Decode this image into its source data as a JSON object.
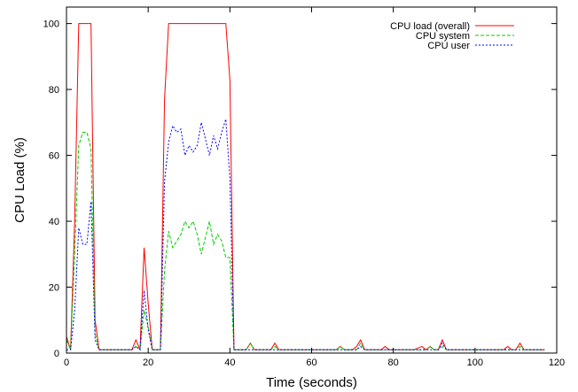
{
  "chart_data": {
    "type": "line",
    "xlabel": "Time (seconds)",
    "ylabel": "CPU Load (%)",
    "xlim": [
      0,
      120
    ],
    "ylim": [
      0,
      105
    ],
    "xticks": [
      0,
      20,
      40,
      60,
      80,
      100,
      120
    ],
    "yticks": [
      0,
      20,
      40,
      60,
      80,
      100
    ],
    "grid": false,
    "legend_position": "top-right",
    "series": [
      {
        "name": "CPU load (overall)",
        "color": "#ff0000",
        "dash": "solid",
        "points": [
          [
            0,
            5
          ],
          [
            1,
            1
          ],
          [
            2,
            40
          ],
          [
            3,
            100
          ],
          [
            4,
            100
          ],
          [
            5,
            100
          ],
          [
            6,
            100
          ],
          [
            7,
            10
          ],
          [
            8,
            1
          ],
          [
            9,
            1
          ],
          [
            10,
            1
          ],
          [
            12,
            1
          ],
          [
            14,
            1
          ],
          [
            16,
            1
          ],
          [
            17,
            4
          ],
          [
            18,
            1
          ],
          [
            19,
            32
          ],
          [
            20,
            15
          ],
          [
            21,
            1
          ],
          [
            22,
            1
          ],
          [
            23,
            1
          ],
          [
            24,
            77
          ],
          [
            25,
            100
          ],
          [
            27,
            100
          ],
          [
            30,
            100
          ],
          [
            33,
            100
          ],
          [
            36,
            100
          ],
          [
            38,
            100
          ],
          [
            39,
            100
          ],
          [
            40,
            83
          ],
          [
            41,
            1
          ],
          [
            42,
            1
          ],
          [
            43,
            1
          ],
          [
            44,
            1
          ],
          [
            45,
            3
          ],
          [
            46,
            1
          ],
          [
            47,
            1
          ],
          [
            48,
            1
          ],
          [
            49,
            1
          ],
          [
            50,
            1
          ],
          [
            51,
            3
          ],
          [
            52,
            1
          ],
          [
            54,
            1
          ],
          [
            56,
            1
          ],
          [
            58,
            1
          ],
          [
            60,
            1
          ],
          [
            62,
            1
          ],
          [
            64,
            1
          ],
          [
            66,
            1
          ],
          [
            67,
            2
          ],
          [
            68,
            1
          ],
          [
            70,
            1
          ],
          [
            71,
            2
          ],
          [
            72,
            4
          ],
          [
            73,
            1
          ],
          [
            75,
            1
          ],
          [
            77,
            1
          ],
          [
            78,
            2
          ],
          [
            79,
            1
          ],
          [
            81,
            1
          ],
          [
            83,
            1
          ],
          [
            85,
            1
          ],
          [
            87,
            2
          ],
          [
            88,
            1
          ],
          [
            89,
            2
          ],
          [
            90,
            1
          ],
          [
            91,
            1
          ],
          [
            92,
            4
          ],
          [
            93,
            1
          ],
          [
            95,
            1
          ],
          [
            97,
            1
          ],
          [
            99,
            1
          ],
          [
            101,
            1
          ],
          [
            103,
            1
          ],
          [
            105,
            1
          ],
          [
            107,
            1
          ],
          [
            108,
            2
          ],
          [
            109,
            1
          ],
          [
            110,
            1
          ],
          [
            111,
            3
          ],
          [
            112,
            1
          ],
          [
            114,
            1
          ],
          [
            116,
            1
          ],
          [
            117,
            1
          ]
        ]
      },
      {
        "name": "CPU system",
        "color": "#00cc00",
        "dash": "4,2",
        "points": [
          [
            0,
            4
          ],
          [
            1,
            1
          ],
          [
            2,
            30
          ],
          [
            3,
            63
          ],
          [
            4,
            67
          ],
          [
            5,
            67
          ],
          [
            6,
            62
          ],
          [
            7,
            6
          ],
          [
            8,
            1
          ],
          [
            9,
            1
          ],
          [
            10,
            1
          ],
          [
            12,
            1
          ],
          [
            14,
            1
          ],
          [
            16,
            1
          ],
          [
            17,
            2
          ],
          [
            18,
            1
          ],
          [
            19,
            13
          ],
          [
            20,
            8
          ],
          [
            21,
            1
          ],
          [
            22,
            1
          ],
          [
            23,
            1
          ],
          [
            24,
            25
          ],
          [
            25,
            37
          ],
          [
            26,
            32
          ],
          [
            27,
            34
          ],
          [
            28,
            36
          ],
          [
            29,
            40
          ],
          [
            30,
            38
          ],
          [
            31,
            40
          ],
          [
            32,
            36
          ],
          [
            33,
            30
          ],
          [
            34,
            35
          ],
          [
            35,
            40
          ],
          [
            36,
            33
          ],
          [
            37,
            36
          ],
          [
            38,
            34
          ],
          [
            39,
            29
          ],
          [
            40,
            29
          ],
          [
            41,
            1
          ],
          [
            42,
            1
          ],
          [
            43,
            1
          ],
          [
            44,
            1
          ],
          [
            45,
            3
          ],
          [
            46,
            1
          ],
          [
            47,
            1
          ],
          [
            48,
            1
          ],
          [
            49,
            1
          ],
          [
            50,
            1
          ],
          [
            51,
            2
          ],
          [
            52,
            1
          ],
          [
            54,
            1
          ],
          [
            56,
            1
          ],
          [
            58,
            1
          ],
          [
            60,
            1
          ],
          [
            62,
            1
          ],
          [
            64,
            1
          ],
          [
            66,
            1
          ],
          [
            67,
            2
          ],
          [
            68,
            1
          ],
          [
            70,
            1
          ],
          [
            71,
            1
          ],
          [
            72,
            3
          ],
          [
            73,
            1
          ],
          [
            75,
            1
          ],
          [
            77,
            1
          ],
          [
            78,
            1
          ],
          [
            79,
            1
          ],
          [
            81,
            1
          ],
          [
            83,
            1
          ],
          [
            85,
            1
          ],
          [
            87,
            1
          ],
          [
            88,
            1
          ],
          [
            89,
            2
          ],
          [
            90,
            1
          ],
          [
            91,
            1
          ],
          [
            92,
            2
          ],
          [
            93,
            1
          ],
          [
            95,
            1
          ],
          [
            97,
            1
          ],
          [
            99,
            1
          ],
          [
            101,
            1
          ],
          [
            103,
            1
          ],
          [
            105,
            1
          ],
          [
            107,
            1
          ],
          [
            108,
            1
          ],
          [
            109,
            1
          ],
          [
            110,
            1
          ],
          [
            111,
            2
          ],
          [
            112,
            1
          ],
          [
            114,
            1
          ],
          [
            116,
            1
          ],
          [
            117,
            1
          ]
        ]
      },
      {
        "name": "CPU user",
        "color": "#0000ff",
        "dash": "2,2",
        "points": [
          [
            0,
            1
          ],
          [
            1,
            1
          ],
          [
            2,
            13
          ],
          [
            3,
            38
          ],
          [
            4,
            33
          ],
          [
            5,
            33
          ],
          [
            6,
            46
          ],
          [
            7,
            4
          ],
          [
            8,
            1
          ],
          [
            9,
            1
          ],
          [
            10,
            1
          ],
          [
            12,
            1
          ],
          [
            14,
            1
          ],
          [
            16,
            1
          ],
          [
            17,
            2
          ],
          [
            18,
            1
          ],
          [
            19,
            19
          ],
          [
            20,
            7
          ],
          [
            21,
            1
          ],
          [
            22,
            1
          ],
          [
            23,
            1
          ],
          [
            24,
            52
          ],
          [
            25,
            64
          ],
          [
            26,
            69
          ],
          [
            27,
            67
          ],
          [
            28,
            68
          ],
          [
            29,
            60
          ],
          [
            30,
            63
          ],
          [
            31,
            61
          ],
          [
            32,
            63
          ],
          [
            33,
            70
          ],
          [
            34,
            65
          ],
          [
            35,
            60
          ],
          [
            36,
            66
          ],
          [
            37,
            62
          ],
          [
            38,
            67
          ],
          [
            39,
            71
          ],
          [
            40,
            53
          ],
          [
            41,
            1
          ],
          [
            42,
            1
          ],
          [
            43,
            1
          ],
          [
            44,
            1
          ],
          [
            45,
            1
          ],
          [
            46,
            1
          ],
          [
            47,
            1
          ],
          [
            48,
            1
          ],
          [
            49,
            1
          ],
          [
            50,
            1
          ],
          [
            51,
            1
          ],
          [
            52,
            1
          ],
          [
            54,
            1
          ],
          [
            56,
            1
          ],
          [
            58,
            1
          ],
          [
            60,
            1
          ],
          [
            62,
            1
          ],
          [
            64,
            1
          ],
          [
            66,
            1
          ],
          [
            67,
            1
          ],
          [
            68,
            1
          ],
          [
            70,
            1
          ],
          [
            71,
            1
          ],
          [
            72,
            2
          ],
          [
            73,
            1
          ],
          [
            75,
            1
          ],
          [
            77,
            1
          ],
          [
            78,
            1
          ],
          [
            79,
            1
          ],
          [
            81,
            1
          ],
          [
            83,
            1
          ],
          [
            85,
            1
          ],
          [
            87,
            1
          ],
          [
            88,
            1
          ],
          [
            89,
            1
          ],
          [
            90,
            1
          ],
          [
            91,
            1
          ],
          [
            92,
            3
          ],
          [
            93,
            1
          ],
          [
            95,
            1
          ],
          [
            97,
            1
          ],
          [
            99,
            1
          ],
          [
            101,
            1
          ],
          [
            103,
            1
          ],
          [
            105,
            1
          ],
          [
            107,
            1
          ],
          [
            108,
            1
          ],
          [
            109,
            1
          ],
          [
            110,
            1
          ],
          [
            111,
            1
          ],
          [
            112,
            1
          ],
          [
            114,
            1
          ],
          [
            116,
            1
          ],
          [
            117,
            1
          ]
        ]
      }
    ]
  }
}
